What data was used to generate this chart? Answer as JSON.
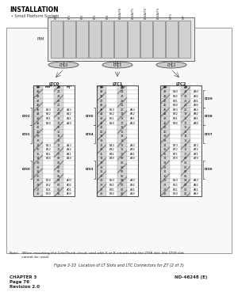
{
  "title_header": "INSTALLATION",
  "box_label": "Small Platform System",
  "pim_label": "PIM",
  "pim_slots": [
    "LT0",
    "LT1",
    "LT2",
    "LT3",
    "LT4",
    "LT4A/P0",
    "LT4A/P1",
    "LT4A/P2",
    "LT4A/P3",
    "MP1",
    "MP"
  ],
  "ltc_connectors": [
    "LTC0",
    "LTC1",
    "LTC2"
  ],
  "ltc_top_labels": [
    "LTC0",
    "LTC1",
    "LTC2"
  ],
  "col_headers": [
    {
      "label": "LTC0",
      "sub": [
        "50",
        "MN*",
        "25",
        "MJ*"
      ]
    },
    {
      "label": "LTC1",
      "sub": [
        "50",
        "",
        "25",
        ""
      ]
    },
    {
      "label": "LTC2",
      "sub": [
        "50",
        "",
        "25",
        ""
      ]
    }
  ],
  "lt_labels_left": [
    "LT02",
    "LT01",
    "LT00"
  ],
  "lt_labels_right_col1": [
    "LT05",
    "LT04",
    "LT03"
  ],
  "lt_labels_right_col2": [
    "LT08",
    "LT07",
    "LT06"
  ],
  "rows": [
    [
      50,
      "",
      25,
      ""
    ],
    [
      49,
      "",
      24,
      ""
    ],
    [
      48,
      "",
      23,
      ""
    ],
    [
      47,
      "",
      22,
      ""
    ],
    [
      46,
      "",
      21,
      ""
    ],
    [
      45,
      "B23",
      20,
      "A23"
    ],
    [
      44,
      "B22",
      19,
      "A22"
    ],
    [
      43,
      "B21",
      18,
      "A21"
    ],
    [
      42,
      "B20",
      17,
      "A20"
    ],
    [
      41,
      "",
      16,
      ""
    ],
    [
      40,
      "",
      15,
      ""
    ],
    [
      39,
      "",
      14,
      ""
    ],
    [
      38,
      "",
      13,
      ""
    ],
    [
      37,
      "B13",
      12,
      "A13"
    ],
    [
      36,
      "B12",
      11,
      "A12"
    ],
    [
      35,
      "B11",
      10,
      "A11"
    ],
    [
      34,
      "B10",
      "09",
      "A10"
    ],
    [
      33,
      "",
      "08",
      ""
    ],
    [
      32,
      "",
      "07",
      ""
    ],
    [
      31,
      "",
      "06",
      ""
    ],
    [
      30,
      "",
      "05",
      ""
    ],
    [
      29,
      "B03",
      "04",
      "A03"
    ],
    [
      28,
      "B02",
      "03",
      "A02"
    ],
    [
      27,
      "B01",
      "02",
      "A01"
    ],
    [
      26,
      "B00",
      "01",
      "A00"
    ]
  ],
  "rows_col2": [
    [
      50,
      "",
      25,
      ""
    ],
    [
      49,
      "",
      24,
      ""
    ],
    [
      48,
      "",
      23,
      ""
    ],
    [
      47,
      "",
      22,
      ""
    ],
    [
      46,
      "",
      21,
      ""
    ],
    [
      45,
      "B53",
      20,
      "A53"
    ],
    [
      44,
      "B52",
      19,
      "A52"
    ],
    [
      43,
      "B51",
      18,
      "A51"
    ],
    [
      42,
      "B50",
      17,
      "A50"
    ],
    [
      41,
      "",
      16,
      ""
    ],
    [
      40,
      "",
      15,
      ""
    ],
    [
      39,
      "",
      14,
      ""
    ],
    [
      38,
      "",
      13,
      ""
    ],
    [
      37,
      "B43",
      12,
      "A43"
    ],
    [
      36,
      "B42",
      11,
      "A42"
    ],
    [
      35,
      "B41",
      10,
      "A41"
    ],
    [
      34,
      "B40",
      "09",
      "A40"
    ],
    [
      33,
      "",
      "08",
      ""
    ],
    [
      32,
      "",
      "07",
      ""
    ],
    [
      31,
      "",
      "06",
      ""
    ],
    [
      30,
      "",
      "05",
      ""
    ],
    [
      29,
      "B33",
      "04",
      "A33"
    ],
    [
      28,
      "B32",
      "03",
      "A32"
    ],
    [
      27,
      "B31",
      "02",
      "A31"
    ],
    [
      26,
      "B30",
      "01",
      "A30"
    ]
  ],
  "rows_col3": [
    [
      50,
      "",
      25,
      ""
    ],
    [
      49,
      "B93",
      24,
      "A93"
    ],
    [
      48,
      "B92",
      23,
      "A92"
    ],
    [
      47,
      "B91",
      22,
      "A91"
    ],
    [
      46,
      "B90",
      21,
      "A90"
    ],
    [
      45,
      "B83",
      20,
      "A83"
    ],
    [
      44,
      "B82",
      19,
      "A82"
    ],
    [
      43,
      "B81",
      18,
      "A81"
    ],
    [
      42,
      "B80",
      17,
      "A80"
    ],
    [
      41,
      "",
      16,
      ""
    ],
    [
      40,
      "",
      15,
      ""
    ],
    [
      39,
      "",
      14,
      ""
    ],
    [
      38,
      "",
      13,
      ""
    ],
    [
      37,
      "B73",
      12,
      "A73"
    ],
    [
      36,
      "B72",
      11,
      "A72"
    ],
    [
      35,
      "B71",
      10,
      "A71"
    ],
    [
      34,
      "B70",
      "09",
      "A70"
    ],
    [
      33,
      "",
      "08",
      ""
    ],
    [
      32,
      "",
      "07",
      ""
    ],
    [
      31,
      "",
      "06",
      ""
    ],
    [
      30,
      "",
      "05",
      ""
    ],
    [
      29,
      "B63",
      "04",
      "A63"
    ],
    [
      28,
      "B62",
      "03",
      "A62"
    ],
    [
      27,
      "B61",
      "02",
      "A61"
    ],
    [
      26,
      "B60",
      "01",
      "A60"
    ]
  ],
  "lt_left_col1": [
    {
      "label": "LT02",
      "rows": [
        4,
        8
      ]
    },
    {
      "label": "LT01",
      "rows": [
        12,
        16
      ]
    },
    {
      "label": "LT00",
      "rows": [
        20,
        24
      ]
    }
  ],
  "lt_right_col2": [
    {
      "label": "LT05",
      "rows": [
        4,
        8
      ]
    },
    {
      "label": "LT04",
      "rows": [
        12,
        16
      ]
    },
    {
      "label": "LT03",
      "rows": [
        20,
        24
      ]
    }
  ],
  "lt_right_col3": [
    {
      "label": "LT08",
      "rows": [
        0,
        8
      ]
    },
    {
      "label": "LT07",
      "rows": [
        9,
        16
      ]
    },
    {
      "label": "LT06",
      "rows": [
        17,
        24
      ]
    }
  ],
  "note_text": "Note:   When mounting the Line/Trunk circuit card with 6 or 8 circuits into the LT08 slot, the LT09 slot\n           cannot be used.",
  "figure_caption": "Figure 3-33  Location of LT Slots and LTC Connectors for ZT (2 of 3)",
  "footer_left": "CHAPTER 3\nPage 76\nRevision 2.0",
  "footer_right": "ND-46248 (E)",
  "bg_color": "#ffffff",
  "border_color": "#000000",
  "hatch_color": "#aaaaaa",
  "text_color": "#000000"
}
